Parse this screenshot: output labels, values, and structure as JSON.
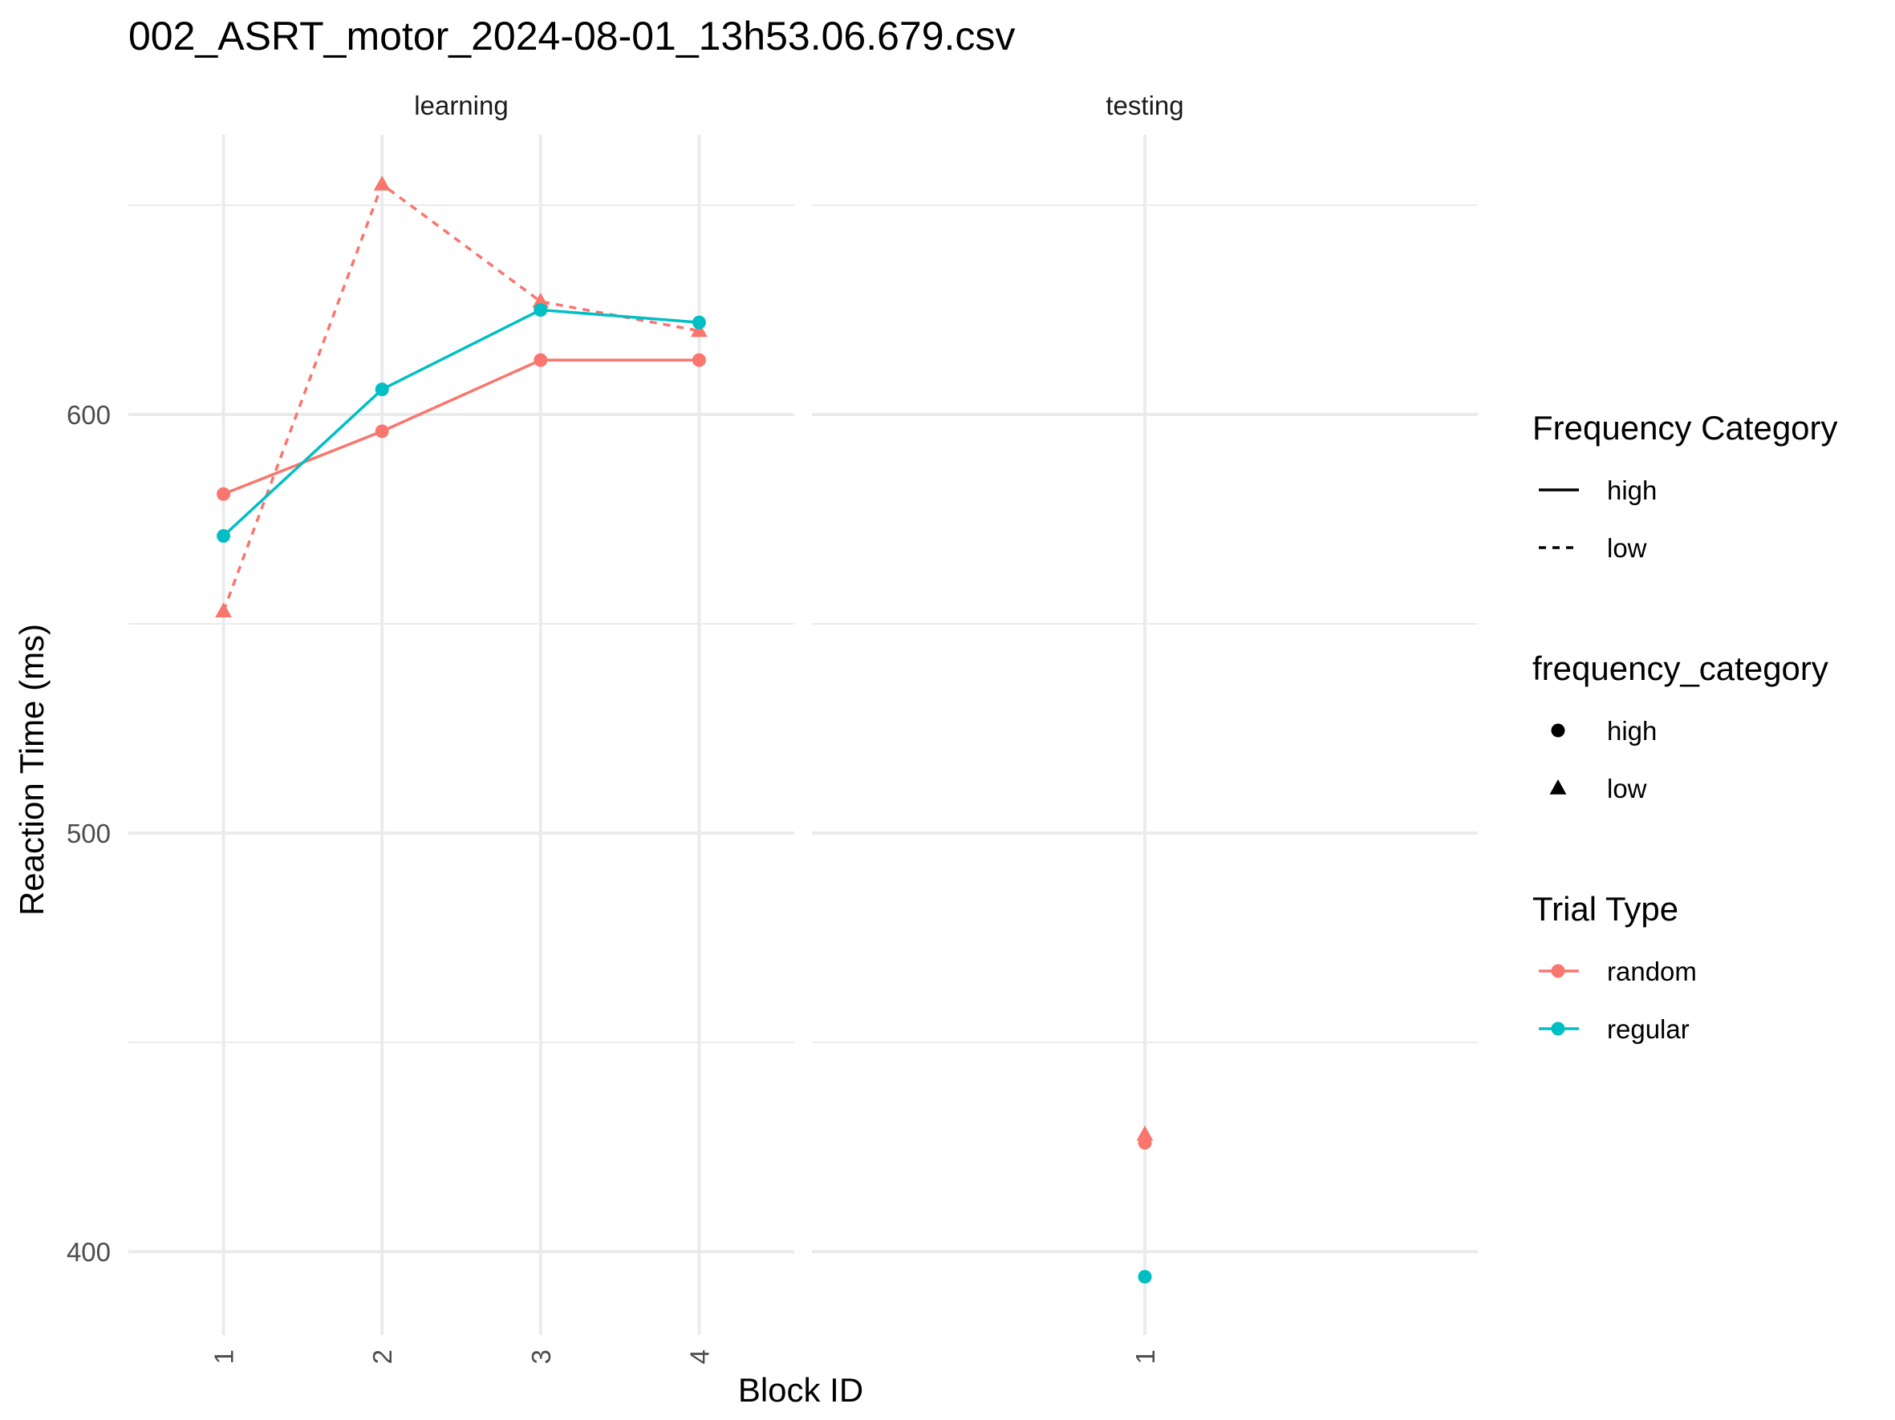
{
  "chart_data": {
    "type": "line",
    "title": "002_ASRT_motor_2024-08-01_13h53.06.679.csv",
    "xlabel": "Block ID",
    "ylabel": "Reaction Time (ms)",
    "ylim": [
      380,
      665
    ],
    "y_ticks": [
      400,
      500,
      600
    ],
    "y_minor": [
      450,
      550,
      650
    ],
    "grid": true,
    "legend_position": "right",
    "colors": {
      "random": "#F8766D",
      "regular": "#00BFC4"
    },
    "facets": [
      {
        "label": "learning",
        "x_ticks": [
          "1",
          "2",
          "3",
          "4"
        ],
        "series": [
          {
            "trial_type": "random",
            "frequency": "high",
            "x": [
              1,
              2,
              3,
              4
            ],
            "y": [
              581,
              596,
              613,
              613
            ]
          },
          {
            "trial_type": "random",
            "frequency": "low",
            "x": [
              1,
              2,
              3,
              4
            ],
            "y": [
              553,
              655,
              627,
              620
            ]
          },
          {
            "trial_type": "regular",
            "frequency": "high",
            "x": [
              1,
              2,
              3,
              4
            ],
            "y": [
              571,
              606,
              625,
              622
            ]
          }
        ]
      },
      {
        "label": "testing",
        "x_ticks": [
          "1"
        ],
        "series": [
          {
            "trial_type": "random",
            "frequency": "high",
            "x": [
              1
            ],
            "y": [
              426
            ]
          },
          {
            "trial_type": "random",
            "frequency": "low",
            "x": [
              1
            ],
            "y": [
              428
            ]
          },
          {
            "trial_type": "regular",
            "frequency": "high",
            "x": [
              1
            ],
            "y": [
              394
            ]
          }
        ]
      }
    ],
    "legends": [
      {
        "title": "Frequency Category",
        "kind": "linetype",
        "items": [
          {
            "label": "high",
            "dash": "solid"
          },
          {
            "label": "low",
            "dash": "dashed"
          }
        ]
      },
      {
        "title": "frequency_category",
        "kind": "shape",
        "items": [
          {
            "label": "high",
            "shape": "circle"
          },
          {
            "label": "low",
            "shape": "triangle"
          }
        ]
      },
      {
        "title": "Trial Type",
        "kind": "colour",
        "items": [
          {
            "label": "random",
            "color": "#F8766D"
          },
          {
            "label": "regular",
            "color": "#00BFC4"
          }
        ]
      }
    ]
  }
}
